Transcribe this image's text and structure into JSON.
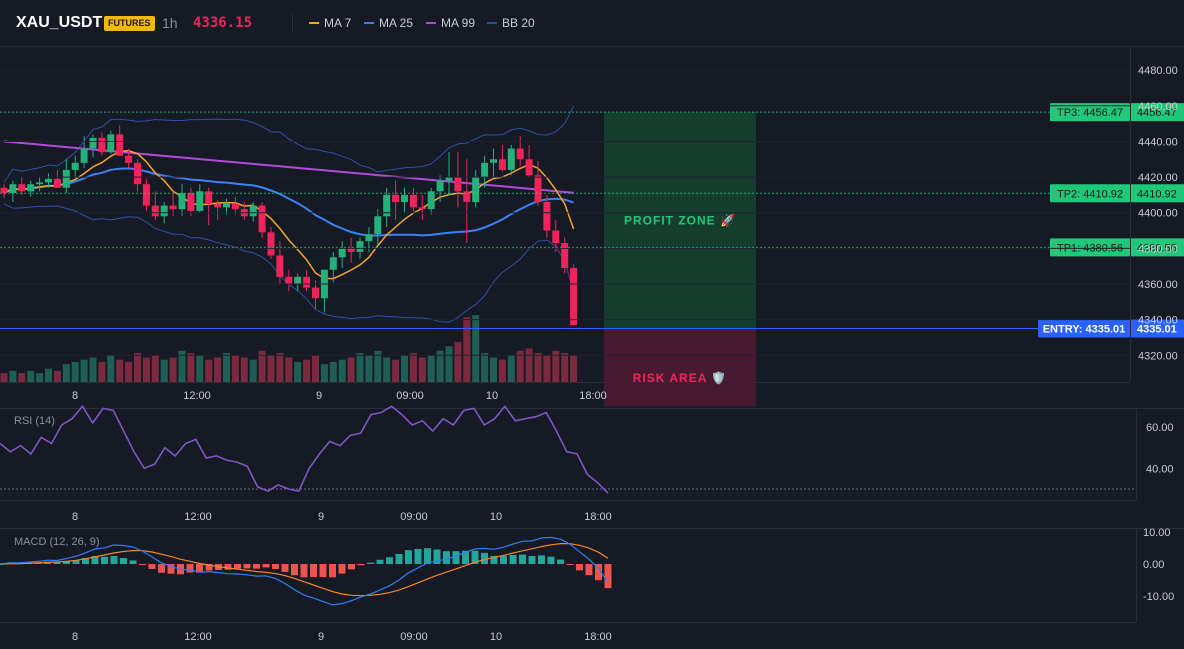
{
  "header": {
    "symbol": "XAU_USDT",
    "badge": "FUTURES",
    "timeframe": "1h",
    "last_price": "4336.15",
    "legend": [
      {
        "label": "MA 7",
        "color": "#f5a623"
      },
      {
        "label": "MA 25",
        "color": "#3b82f6"
      },
      {
        "label": "MA 99",
        "color": "#b44ad9"
      },
      {
        "label": "BB 20",
        "color": "#2f4fa8"
      }
    ]
  },
  "colors": {
    "up": "#26b07a",
    "down": "#f0245a",
    "badge": "#f0b90b",
    "profit": "#1fc979",
    "entry": "#2962ff",
    "rsi": "#7e57c2",
    "macd_line": "#2f7ef5",
    "signal_line": "#f5872a",
    "hist_up": "#26a69a",
    "hist_down": "#ef5350"
  },
  "price_axis": {
    "ticks": [
      "4480.00",
      "4460.00",
      "4440.00",
      "4420.00",
      "4400.00",
      "4380.00",
      "4360.00",
      "4340.00",
      "4320.00"
    ],
    "range": [
      4305,
      4493
    ]
  },
  "time_axis": [
    "8",
    "12:00",
    "9",
    "09:00",
    "10",
    "18:00"
  ],
  "levels": {
    "tp3": {
      "label": "TP3: 4456.47",
      "axis": "4456.47",
      "price": 4456.47
    },
    "tp2": {
      "label": "TP2: 4410.92",
      "axis": "4410.92",
      "price": 4410.92
    },
    "tp1": {
      "label": "TP1: 4380.56",
      "axis": "4380.56",
      "price": 4380.56
    },
    "entry": {
      "label": "ENTRY: 4335.01",
      "axis": "4335.01",
      "price": 4335.01
    }
  },
  "zones": {
    "profit": "PROFIT ZONE 🚀",
    "risk": "RISK AREA 🛡️"
  },
  "rsi": {
    "label": "RSI (14)",
    "ticks": [
      "60.00",
      "40.00"
    ],
    "level": 30,
    "values": [
      52,
      48,
      51,
      47,
      55,
      52,
      61,
      64,
      70,
      62,
      69,
      68,
      58,
      48,
      40,
      42,
      50,
      46,
      52,
      54,
      45,
      46,
      44,
      43,
      41,
      31,
      29,
      32,
      30,
      29,
      40,
      47,
      53,
      51,
      56,
      57,
      66,
      67,
      70,
      66,
      61,
      63,
      58,
      64,
      61,
      68,
      69,
      61,
      64,
      70,
      63,
      64,
      65,
      67,
      58,
      48,
      47,
      37,
      33,
      28
    ]
  },
  "macd": {
    "label": "MACD (12, 26, 9)",
    "ticks": [
      "10.00",
      "0.00",
      "-10.00"
    ]
  },
  "chart_data": {
    "type": "candlestick",
    "candles": [
      [
        4414,
        4416,
        4408,
        4411
      ],
      [
        4411,
        4418,
        4406,
        4416
      ],
      [
        4416,
        4420,
        4410,
        4412
      ],
      [
        4412,
        4418,
        4409,
        4416
      ],
      [
        4416,
        4420,
        4412,
        4417
      ],
      [
        4417,
        4422,
        4414,
        4419
      ],
      [
        4419,
        4424,
        4414,
        4414
      ],
      [
        4414,
        4430,
        4411,
        4424
      ],
      [
        4424,
        4432,
        4419,
        4428
      ],
      [
        4428,
        4443,
        4425,
        4436
      ],
      [
        4436,
        4444,
        4431,
        4442
      ],
      [
        4442,
        4445,
        4432,
        4434
      ],
      [
        4434,
        4446,
        4433,
        4444
      ],
      [
        4444,
        4449,
        4432,
        4432
      ],
      [
        4432,
        4436,
        4425,
        4428
      ],
      [
        4428,
        4430,
        4412,
        4416
      ],
      [
        4416,
        4419,
        4401,
        4404
      ],
      [
        4404,
        4412,
        4396,
        4398
      ],
      [
        4398,
        4406,
        4394,
        4404
      ],
      [
        4404,
        4412,
        4398,
        4402
      ],
      [
        4402,
        4416,
        4398,
        4411
      ],
      [
        4411,
        4414,
        4398,
        4401
      ],
      [
        4401,
        4416,
        4400,
        4412
      ],
      [
        4412,
        4414,
        4393,
        4405
      ],
      [
        4405,
        4407,
        4396,
        4403
      ],
      [
        4403,
        4408,
        4399,
        4405
      ],
      [
        4405,
        4409,
        4399,
        4402
      ],
      [
        4402,
        4406,
        4396,
        4398
      ],
      [
        4398,
        4406,
        4395,
        4404
      ],
      [
        4404,
        4406,
        4386,
        4389
      ],
      [
        4389,
        4392,
        4374,
        4376
      ],
      [
        4376,
        4384,
        4360,
        4364
      ],
      [
        4364,
        4368,
        4356,
        4360
      ],
      [
        4360,
        4366,
        4356,
        4364
      ],
      [
        4364,
        4368,
        4356,
        4358
      ],
      [
        4358,
        4362,
        4346,
        4352
      ],
      [
        4352,
        4368,
        4344,
        4368
      ],
      [
        4368,
        4378,
        4361,
        4375
      ],
      [
        4375,
        4384,
        4369,
        4380
      ],
      [
        4380,
        4386,
        4372,
        4378
      ],
      [
        4378,
        4386,
        4374,
        4384
      ],
      [
        4384,
        4392,
        4378,
        4388
      ],
      [
        4388,
        4402,
        4382,
        4398
      ],
      [
        4398,
        4414,
        4392,
        4410
      ],
      [
        4410,
        4418,
        4396,
        4406
      ],
      [
        4406,
        4414,
        4400,
        4410
      ],
      [
        4410,
        4414,
        4401,
        4403
      ],
      [
        4403,
        4410,
        4396,
        4402
      ],
      [
        4402,
        4414,
        4399,
        4412
      ],
      [
        4412,
        4421,
        4406,
        4418
      ],
      [
        4418,
        4434,
        4410,
        4420
      ],
      [
        4420,
        4434,
        4403,
        4412
      ],
      [
        4412,
        4430,
        4383,
        4406
      ],
      [
        4406,
        4424,
        4403,
        4420
      ],
      [
        4420,
        4432,
        4414,
        4428
      ],
      [
        4428,
        4436,
        4420,
        4430
      ],
      [
        4430,
        4438,
        4423,
        4424
      ],
      [
        4424,
        4438,
        4421,
        4436
      ],
      [
        4436,
        4443,
        4426,
        4430
      ],
      [
        4430,
        4438,
        4420,
        4421
      ],
      [
        4421,
        4429,
        4404,
        4406
      ],
      [
        4406,
        4410,
        4386,
        4390
      ],
      [
        4390,
        4396,
        4378,
        4383
      ],
      [
        4383,
        4386,
        4366,
        4369
      ],
      [
        4369,
        4371,
        4337,
        4337
      ]
    ],
    "volume": [
      4,
      5,
      4,
      5,
      4,
      6,
      5,
      8,
      9,
      10,
      11,
      9,
      12,
      10,
      9,
      13,
      11,
      12,
      10,
      11,
      14,
      13,
      12,
      10,
      11,
      13,
      12,
      11,
      10,
      14,
      12,
      13,
      11,
      9,
      10,
      12,
      8,
      9,
      10,
      11,
      13,
      12,
      14,
      11,
      10,
      12,
      13,
      11,
      12,
      14,
      16,
      18,
      29,
      30,
      13,
      11,
      10,
      12,
      14,
      15,
      13,
      12,
      14,
      13,
      12
    ],
    "xlabel": "",
    "ylabel": ""
  }
}
